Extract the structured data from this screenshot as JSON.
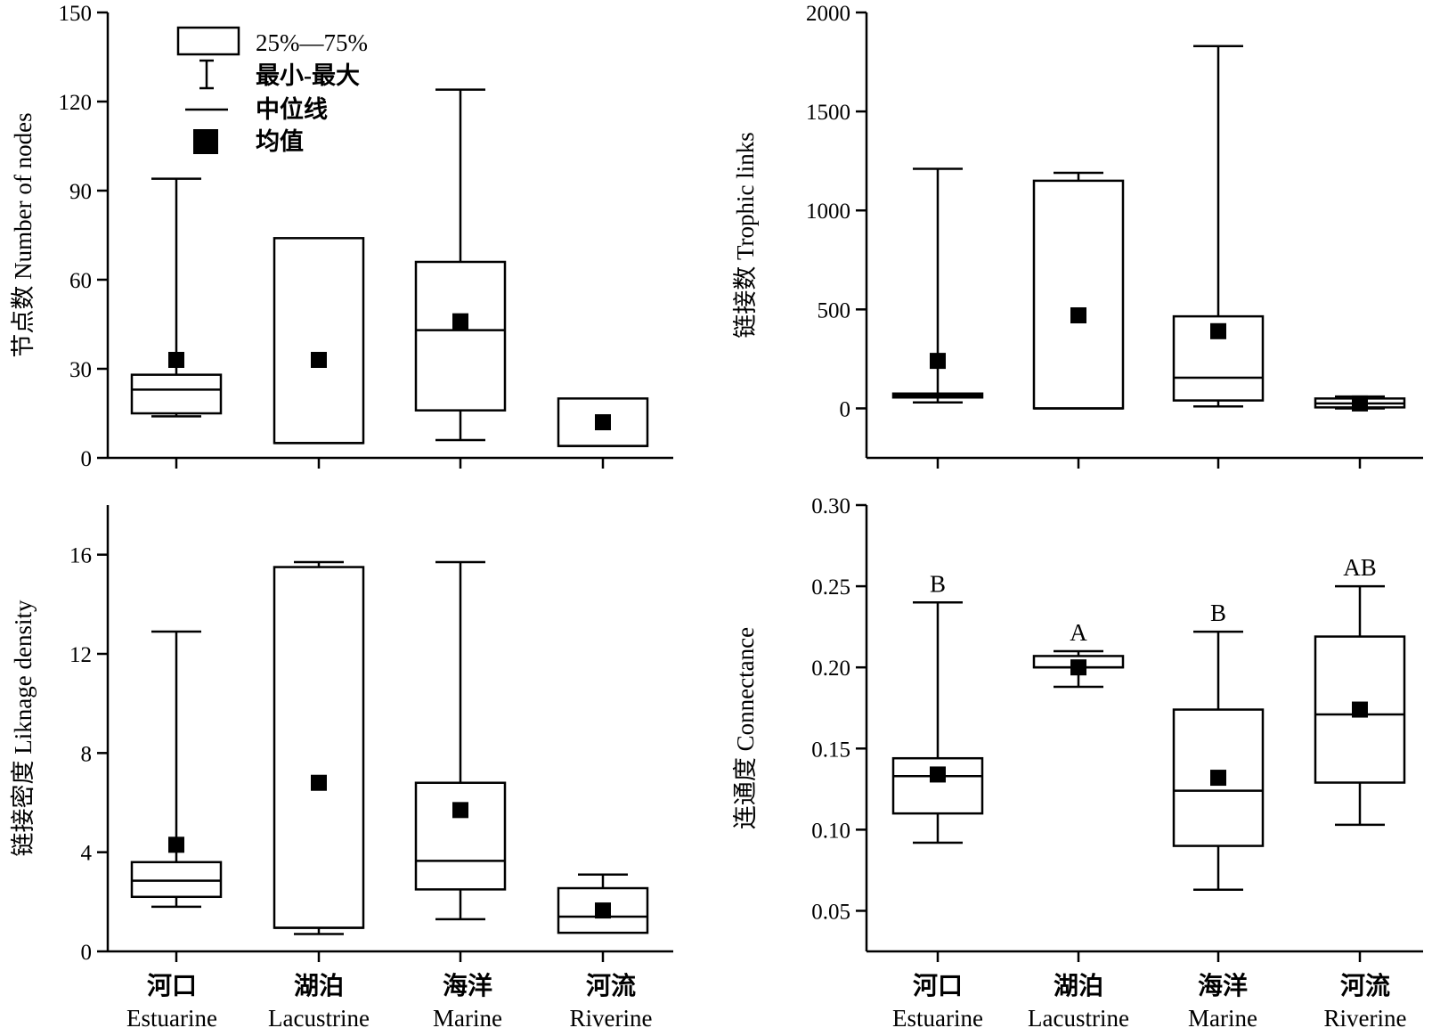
{
  "categories": [
    {
      "cn": "河口",
      "en": "Estuarine"
    },
    {
      "cn": "湖泊",
      "en": "Lacustrine"
    },
    {
      "cn": "海洋",
      "en": "Marine"
    },
    {
      "cn": "河流",
      "en": "Riverine"
    }
  ],
  "legend": {
    "box": "25%—75%",
    "whisker": "最小-最大",
    "median": "中位线",
    "mean": "均值"
  },
  "chart_data": [
    {
      "type": "box",
      "panel": "top-left",
      "ylabel": "节点数 Number of nodes",
      "ylim": [
        0,
        150
      ],
      "yticks": [
        0,
        30,
        60,
        90,
        120,
        150
      ],
      "tick_labels": [
        "0",
        "30",
        "60",
        "90",
        "120",
        "150"
      ],
      "legend_position": "top-left",
      "boxes": [
        {
          "min": 14,
          "q1": 15,
          "median": 23,
          "q3": 28,
          "max": 94,
          "mean": 33
        },
        {
          "min": 5,
          "q1": 5,
          "median": 5,
          "q3": 74,
          "max": 74,
          "mean": 33
        },
        {
          "min": 6,
          "q1": 16,
          "median": 43,
          "q3": 66,
          "max": 124,
          "mean": 46
        },
        {
          "min": 4,
          "q1": 4,
          "median": 4,
          "q3": 20,
          "max": 20,
          "mean": 12
        }
      ]
    },
    {
      "type": "box",
      "panel": "top-right",
      "ylabel": "链接数 Trophic links",
      "ylim": [
        -250,
        2000
      ],
      "yticks": [
        0,
        500,
        1000,
        1500,
        2000
      ],
      "tick_labels": [
        "0",
        "500",
        "1000",
        "1500",
        "2000"
      ],
      "boxes": [
        {
          "min": 30,
          "q1": 55,
          "median": 65,
          "q3": 75,
          "max": 1210,
          "mean": 240
        },
        {
          "min": 0,
          "q1": 0,
          "median": 0,
          "q3": 1150,
          "max": 1190,
          "mean": 470
        },
        {
          "min": 10,
          "q1": 40,
          "median": 155,
          "q3": 465,
          "max": 1830,
          "mean": 390
        },
        {
          "min": 0,
          "q1": 5,
          "median": 25,
          "q3": 50,
          "max": 60,
          "mean": 25
        }
      ]
    },
    {
      "type": "box",
      "panel": "bottom-left",
      "ylabel": "链接密度 Liknage density",
      "ylim": [
        0,
        18
      ],
      "yticks": [
        0,
        4,
        8,
        12,
        16
      ],
      "tick_labels": [
        "0",
        "4",
        "8",
        "12",
        "16"
      ],
      "boxes": [
        {
          "min": 1.8,
          "q1": 2.2,
          "median": 2.85,
          "q3": 3.6,
          "max": 12.9,
          "mean": 4.3
        },
        {
          "min": 0.7,
          "q1": 0.95,
          "median": 0.95,
          "q3": 15.5,
          "max": 15.7,
          "mean": 6.8
        },
        {
          "min": 1.3,
          "q1": 2.5,
          "median": 3.65,
          "q3": 6.8,
          "max": 15.7,
          "mean": 5.7
        },
        {
          "min": 0.75,
          "q1": 0.75,
          "median": 1.4,
          "q3": 2.55,
          "max": 3.1,
          "mean": 1.65
        }
      ]
    },
    {
      "type": "box",
      "panel": "bottom-right",
      "ylabel": "连通度 Connectance",
      "ylim": [
        0.025,
        0.3
      ],
      "yticks": [
        0.05,
        0.1,
        0.15,
        0.2,
        0.25,
        0.3
      ],
      "tick_labels": [
        "0.05",
        "0.10",
        "0.15",
        "0.20",
        "0.25",
        "0.30"
      ],
      "boxes": [
        {
          "min": 0.092,
          "q1": 0.11,
          "median": 0.133,
          "q3": 0.144,
          "max": 0.24,
          "mean": 0.134,
          "sig": "B"
        },
        {
          "min": 0.188,
          "q1": 0.2,
          "median": 0.2,
          "q3": 0.207,
          "max": 0.21,
          "mean": 0.2,
          "sig": "A"
        },
        {
          "min": 0.063,
          "q1": 0.09,
          "median": 0.124,
          "q3": 0.174,
          "max": 0.222,
          "mean": 0.132,
          "sig": "B"
        },
        {
          "min": 0.103,
          "q1": 0.129,
          "median": 0.171,
          "q3": 0.219,
          "max": 0.25,
          "mean": 0.174,
          "sig": "AB"
        }
      ]
    }
  ]
}
